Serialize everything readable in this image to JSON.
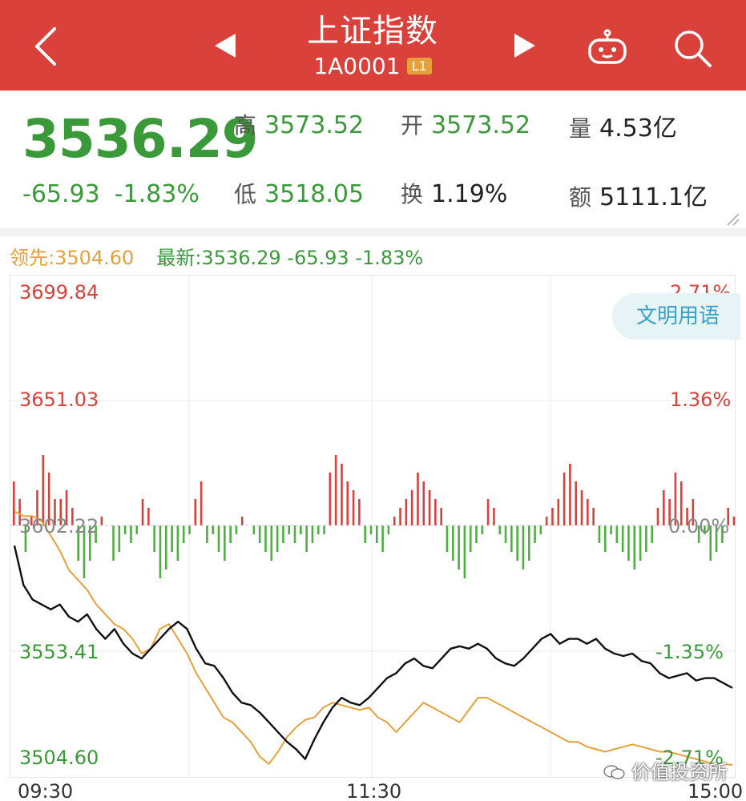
{
  "header": {
    "title": "上证指数",
    "code": "1A0001",
    "badge": "L1"
  },
  "quote": {
    "price": "3536.29",
    "change": "-65.93",
    "change_pct": "-1.83%",
    "stats": [
      {
        "label": "高",
        "value": "3573.52"
      },
      {
        "label": "开",
        "value": "3573.52"
      },
      {
        "label": "量",
        "value": "4.53亿"
      },
      {
        "label": "低",
        "value": "3518.05"
      },
      {
        "label": "换",
        "value": "1.19%"
      },
      {
        "label": "额",
        "value": "5111.1亿"
      }
    ]
  },
  "legend": {
    "lead": "领先:3504.60",
    "latest": "最新:3536.29  -65.93  -1.83%"
  },
  "wenming_button": "文明用语",
  "watermark": "价值投资所",
  "colors": {
    "header_bg": "#d9413a",
    "up": "#d9413a",
    "down": "#3a9a3a",
    "lead_line": "#e8a13a",
    "price_line": "#111111"
  },
  "chart_data": {
    "type": "line",
    "y_left_labels": [
      "3699.84",
      "3651.03",
      "3602.22",
      "3553.41",
      "3504.60"
    ],
    "y_right_labels": [
      "2.71%",
      "1.36%",
      "0.00%",
      "-1.35%",
      "-2.71%"
    ],
    "x_labels": [
      "09:30",
      "11:30",
      "15:00"
    ],
    "ylim": [
      3504.6,
      3699.84
    ],
    "series": [
      {
        "name": "最新",
        "color": "#111111",
        "values": [
          3594,
          3578,
          3572,
          3570,
          3568,
          3570,
          3565,
          3563,
          3566,
          3560,
          3556,
          3560,
          3554,
          3550,
          3548,
          3552,
          3556,
          3560,
          3563,
          3560,
          3552,
          3546,
          3545,
          3540,
          3534,
          3530,
          3529,
          3526,
          3522,
          3518,
          3514,
          3511,
          3507,
          3515,
          3522,
          3528,
          3532,
          3530,
          3529,
          3532,
          3536,
          3540,
          3542,
          3546,
          3548,
          3545,
          3544,
          3548,
          3552,
          3553,
          3552,
          3554,
          3552,
          3548,
          3546,
          3545,
          3548,
          3552,
          3556,
          3558,
          3554,
          3556,
          3556,
          3554,
          3556,
          3552,
          3550,
          3549,
          3550,
          3547,
          3546,
          3542,
          3540,
          3541,
          3542,
          3539,
          3540,
          3540,
          3538,
          3536
        ]
      },
      {
        "name": "领先",
        "color": "#e8a13a",
        "values": [
          3608,
          3606,
          3606,
          3604,
          3598,
          3592,
          3584,
          3580,
          3576,
          3570,
          3566,
          3562,
          3560,
          3556,
          3550,
          3552,
          3560,
          3562,
          3556,
          3550,
          3542,
          3536,
          3530,
          3524,
          3522,
          3518,
          3514,
          3508,
          3505,
          3510,
          3516,
          3520,
          3523,
          3524,
          3528,
          3530,
          3529,
          3528,
          3527,
          3528,
          3524,
          3522,
          3518,
          3522,
          3526,
          3530,
          3528,
          3526,
          3524,
          3522,
          3527,
          3532,
          3532,
          3530,
          3528,
          3526,
          3524,
          3522,
          3520,
          3518,
          3516,
          3514,
          3514,
          3512,
          3511,
          3510,
          3511,
          3512,
          3513,
          3512,
          3511,
          3510,
          3510,
          3509,
          3508,
          3507,
          3506,
          3505,
          3505,
          3504.6
        ]
      }
    ],
    "bars": [
      5,
      3,
      -3,
      1,
      4,
      8,
      6,
      3,
      3,
      4,
      2,
      -4,
      -6,
      -4,
      -2,
      1,
      0,
      -4,
      -3,
      -1,
      -2,
      -1,
      3,
      2,
      -3,
      -6,
      -5,
      -3,
      -4,
      -2,
      -1,
      3,
      5,
      -2,
      -1,
      -3,
      -4,
      -2,
      -1,
      1,
      0,
      -1,
      -2,
      -3,
      -4,
      -3,
      -2,
      -1,
      -2,
      -1,
      -3,
      -2,
      -1,
      -1,
      6,
      8,
      7,
      5,
      4,
      3,
      -2,
      -1,
      -2,
      -3,
      -1,
      1,
      2,
      3,
      4,
      6,
      5,
      4,
      3,
      2,
      -3,
      -4,
      -5,
      -6,
      -3,
      -2,
      -1,
      3,
      2,
      -1,
      -2,
      -3,
      -4,
      -5,
      -4,
      -2,
      -1,
      1,
      2,
      3,
      6,
      7,
      5,
      4,
      3,
      2,
      -2,
      -3,
      -1,
      -2,
      -3,
      -4,
      -5,
      -4,
      -3,
      -2,
      2,
      4,
      3,
      6,
      5,
      2,
      3,
      -2,
      -1,
      -4,
      -3,
      -2,
      2,
      1
    ]
  }
}
